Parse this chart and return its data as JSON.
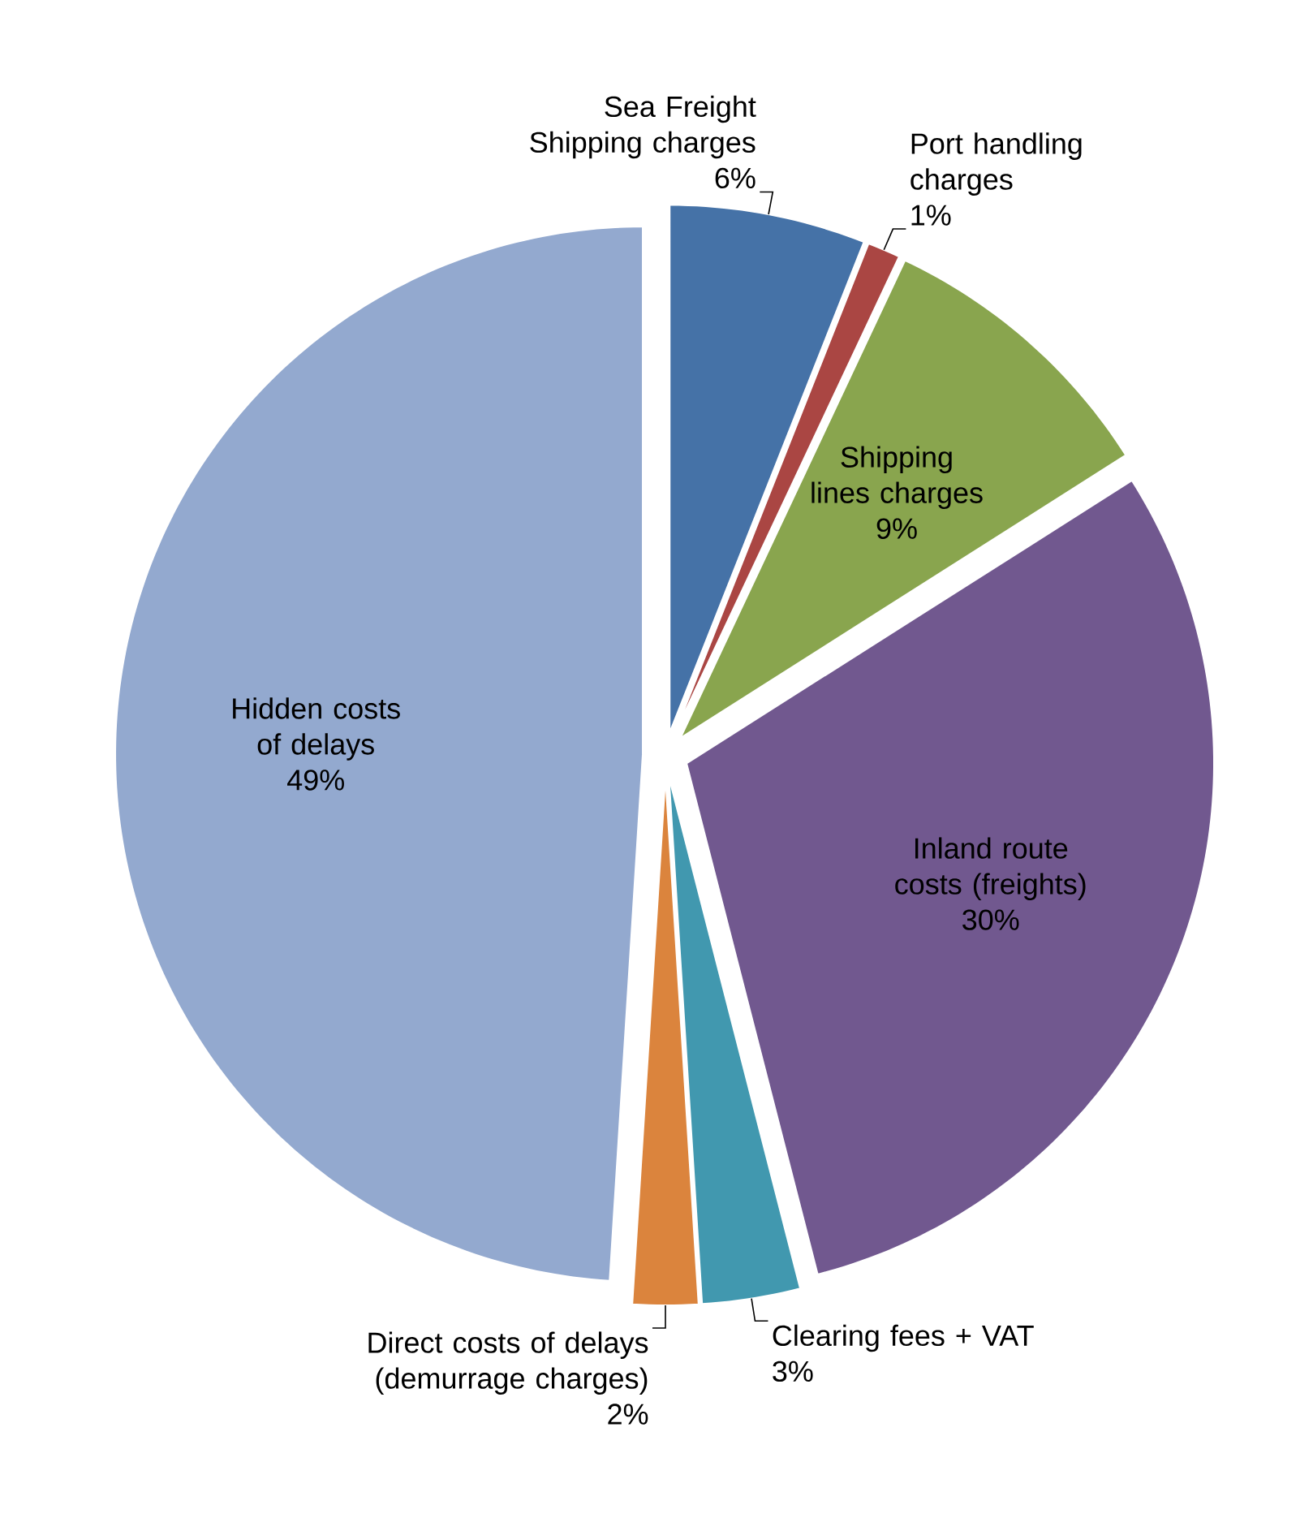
{
  "chart_data": {
    "type": "pie",
    "categories": [
      "Sea Freight Shipping charges",
      "Port handling charges",
      "Shipping lines charges",
      "Inland route costs (freights)",
      "Clearing fees + VAT",
      "Direct costs of delays (demurrage charges)",
      "Hidden costs of delays"
    ],
    "values": [
      6,
      1,
      9,
      30,
      3,
      2,
      49
    ],
    "value_labels": [
      "6%",
      "1%",
      "9%",
      "30%",
      "3%",
      "2%",
      "49%"
    ],
    "colors": [
      "#4572a7",
      "#aa4643",
      "#89a54e",
      "#71588f",
      "#4198af",
      "#db843d",
      "#93a9cf"
    ]
  }
}
